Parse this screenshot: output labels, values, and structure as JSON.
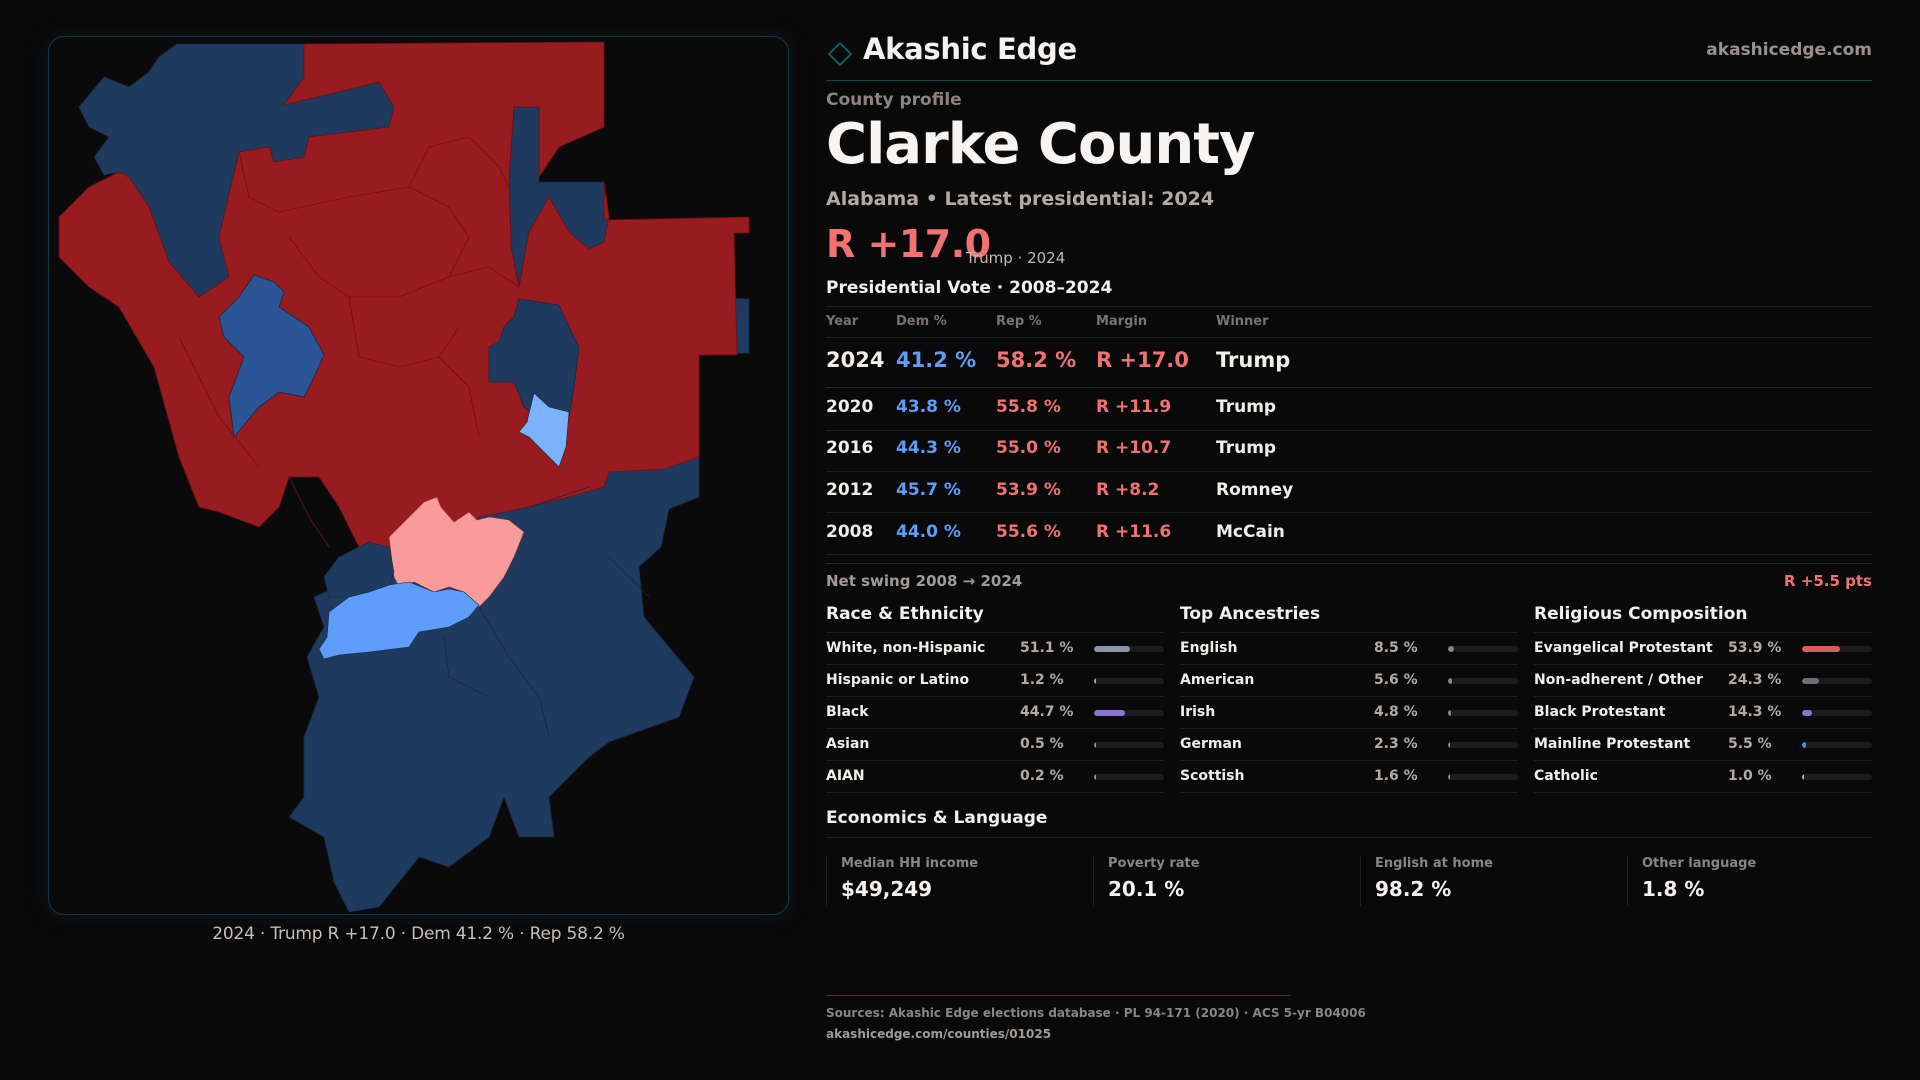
{
  "brand": {
    "name": "Akashic Edge",
    "url": "akashicedge.com",
    "logo_icon": "diamond-outline-icon",
    "accent": "#0e4a55"
  },
  "profile": {
    "eyebrow": "County profile",
    "county": "Clarke County",
    "subtitle": "Alabama • Latest presidential: 2024",
    "headline_margin": "R +17.0",
    "headline_note": "Trump · 2024"
  },
  "presidential": {
    "title": "Presidential Vote · 2008–2024",
    "headers": {
      "year": "Year",
      "dem": "Dem %",
      "rep": "Rep %",
      "margin": "Margin",
      "winner": "Winner"
    },
    "rows": [
      {
        "year": "2024",
        "dem": "41.2 %",
        "rep": "58.2 %",
        "margin": "R +17.0",
        "winner": "Trump"
      },
      {
        "year": "2020",
        "dem": "43.8 %",
        "rep": "55.8 %",
        "margin": "R +11.9",
        "winner": "Trump"
      },
      {
        "year": "2016",
        "dem": "44.3 %",
        "rep": "55.0 %",
        "margin": "R +10.7",
        "winner": "Trump"
      },
      {
        "year": "2012",
        "dem": "45.7 %",
        "rep": "53.9 %",
        "margin": "R +8.2",
        "winner": "Romney"
      },
      {
        "year": "2008",
        "dem": "44.0 %",
        "rep": "55.6 %",
        "margin": "R +11.6",
        "winner": "McCain"
      }
    ],
    "swing_label": "Net swing 2008 → 2024",
    "swing_value": "R +5.5 pts",
    "colors": {
      "dem": "#5e9df8",
      "rep": "#f07272"
    }
  },
  "race": {
    "title": "Race & Ethnicity",
    "items": [
      {
        "label": "White, non-Hispanic",
        "value": "51.1 %",
        "pct": 51.1,
        "color": "#8a95a8"
      },
      {
        "label": "Hispanic or Latino",
        "value": "1.2 %",
        "pct": 1.2,
        "color": "#e8a03a"
      },
      {
        "label": "Black",
        "value": "44.7 %",
        "pct": 44.7,
        "color": "#8b72d6"
      },
      {
        "label": "Asian",
        "value": "0.5 %",
        "pct": 0.5,
        "color": "#3fb3a6"
      },
      {
        "label": "AIAN",
        "value": "0.2 %",
        "pct": 0.2,
        "color": "#c98b5a"
      }
    ]
  },
  "ancestry": {
    "title": "Top Ancestries",
    "items": [
      {
        "label": "English",
        "value": "8.5 %",
        "pct": 8.5,
        "color": "#7a879c"
      },
      {
        "label": "American",
        "value": "5.6 %",
        "pct": 5.6,
        "color": "#7a879c"
      },
      {
        "label": "Irish",
        "value": "4.8 %",
        "pct": 4.8,
        "color": "#7a879c"
      },
      {
        "label": "German",
        "value": "2.3 %",
        "pct": 2.3,
        "color": "#7a879c"
      },
      {
        "label": "Scottish",
        "value": "1.6 %",
        "pct": 1.6,
        "color": "#7a879c"
      }
    ]
  },
  "religion": {
    "title": "Religious Composition",
    "items": [
      {
        "label": "Evangelical Protestant",
        "value": "53.9 %",
        "pct": 53.9,
        "color": "#d85b60"
      },
      {
        "label": "Non-adherent / Other",
        "value": "24.3 %",
        "pct": 24.3,
        "color": "#6b6f7a"
      },
      {
        "label": "Black Protestant",
        "value": "14.3 %",
        "pct": 14.3,
        "color": "#8b72d6"
      },
      {
        "label": "Mainline Protestant",
        "value": "5.5 %",
        "pct": 5.5,
        "color": "#4a8be0"
      },
      {
        "label": "Catholic",
        "value": "1.0 %",
        "pct": 1.0,
        "color": "#e0b030"
      }
    ]
  },
  "economics": {
    "title": "Economics & Language",
    "cards": [
      {
        "label": "Median HH income",
        "value": "$49,249"
      },
      {
        "label": "Poverty rate",
        "value": "20.1 %"
      },
      {
        "label": "English at home",
        "value": "98.2 %"
      },
      {
        "label": "Other language",
        "value": "1.8 %"
      }
    ]
  },
  "map": {
    "caption": "2024 · Trump R +17.0 · Dem 41.2 % · Rep 58.2 %",
    "legend_colors": {
      "strong_rep": "#981b1f",
      "lean_rep": "#f99b9a",
      "strong_dem": "#1f3a5f",
      "likely_dem": "#2a5596",
      "lean_dem": "#5e9dfb",
      "tilt_dem": "#7ab3fb"
    }
  },
  "footer": {
    "sources": "Sources: Akashic Edge elections database · PL 94-171 (2020) · ACS 5-yr B04006",
    "url": "akashicedge.com/counties/01025"
  }
}
